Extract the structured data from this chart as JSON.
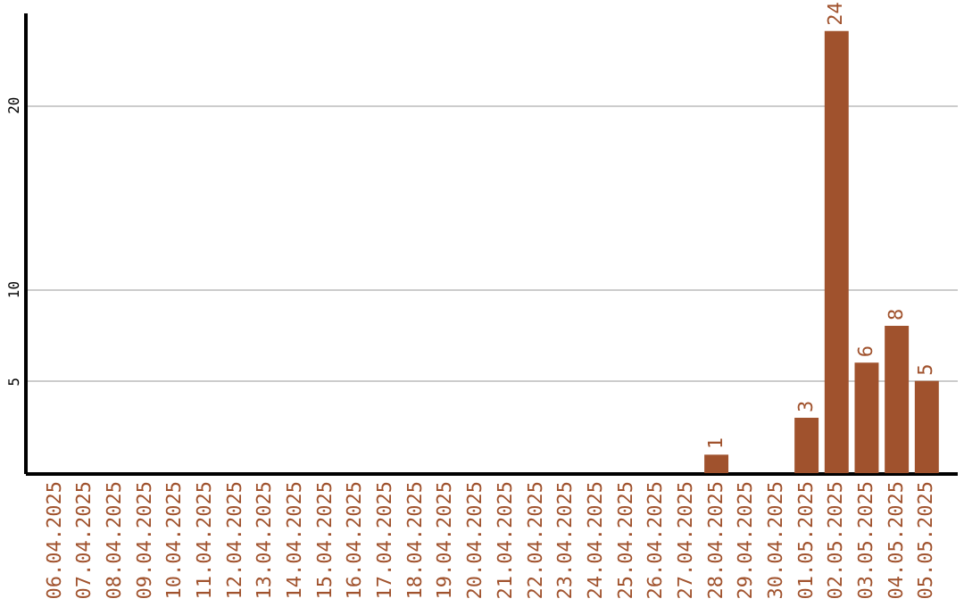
{
  "chart_data": {
    "type": "bar",
    "categories": [
      "06.04.2025",
      "07.04.2025",
      "08.04.2025",
      "09.04.2025",
      "10.04.2025",
      "11.04.2025",
      "12.04.2025",
      "13.04.2025",
      "14.04.2025",
      "15.04.2025",
      "16.04.2025",
      "17.04.2025",
      "18.04.2025",
      "19.04.2025",
      "20.04.2025",
      "21.04.2025",
      "22.04.2025",
      "23.04.2025",
      "24.04.2025",
      "25.04.2025",
      "26.04.2025",
      "27.04.2025",
      "28.04.2025",
      "29.04.2025",
      "30.04.2025",
      "01.05.2025",
      "02.05.2025",
      "03.05.2025",
      "04.05.2025",
      "05.05.2025"
    ],
    "values": [
      0,
      0,
      0,
      0,
      0,
      0,
      0,
      0,
      0,
      0,
      0,
      0,
      0,
      0,
      0,
      0,
      0,
      0,
      0,
      0,
      0,
      0,
      1,
      0,
      0,
      3,
      24,
      6,
      8,
      5
    ],
    "value_labels": [
      null,
      null,
      null,
      null,
      null,
      null,
      null,
      null,
      null,
      null,
      null,
      null,
      null,
      null,
      null,
      null,
      null,
      null,
      null,
      null,
      null,
      null,
      "1",
      null,
      null,
      "3",
      "24",
      "6",
      "8",
      "5"
    ],
    "color": "#a0522d",
    "ylim": [
      0,
      25
    ],
    "yticks": [
      5,
      10,
      20
    ],
    "grid": "y"
  }
}
